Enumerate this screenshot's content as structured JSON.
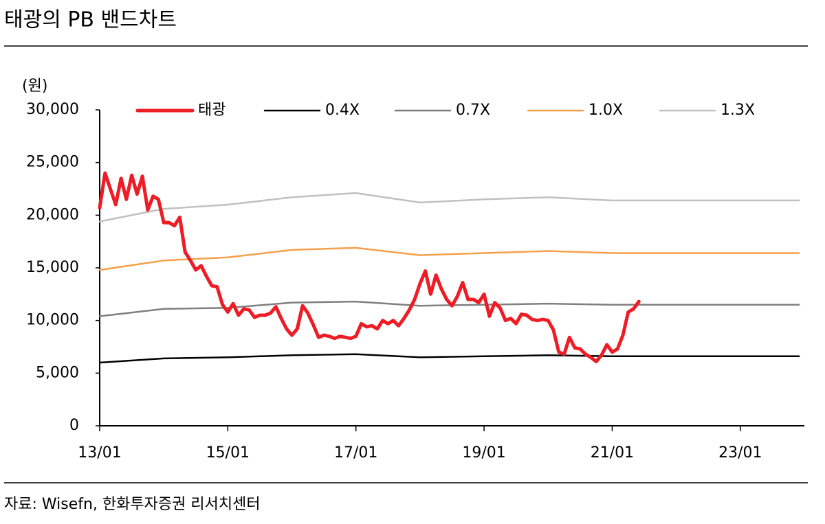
{
  "chart_data": {
    "type": "line",
    "title": "태광의 PB 밴드차트",
    "y_unit": "(원)",
    "source": "자료: Wisefn, 한화투자증권 리서치센터",
    "xlim": [
      "13/01",
      "23/12"
    ],
    "xticks": [
      "13/01",
      "15/01",
      "17/01",
      "19/01",
      "21/01",
      "23/01"
    ],
    "ylim": [
      0,
      30000
    ],
    "yticks": [
      0,
      {
        "value": 5000,
        "label": "5,000"
      },
      {
        "value": 10000,
        "label": "10,000"
      },
      {
        "value": 15000,
        "label": "15,000"
      },
      {
        "value": 20000,
        "label": "20,000"
      },
      {
        "value": 25000,
        "label": "25,000"
      },
      {
        "value": 30000,
        "label": "30,000"
      }
    ],
    "legend": "top",
    "series": [
      {
        "name": "태광",
        "color": "#ee1c25",
        "x": [
          "13/01",
          "13/02",
          "13/03",
          "13/04",
          "13/05",
          "13/06",
          "13/07",
          "13/08",
          "13/09",
          "13/10",
          "13/11",
          "13/12",
          "14/01",
          "14/02",
          "14/03",
          "14/04",
          "14/05",
          "14/06",
          "14/07",
          "14/08",
          "14/09",
          "14/10",
          "14/11",
          "14/12",
          "15/01",
          "15/02",
          "15/03",
          "15/04",
          "15/05",
          "15/06",
          "15/07",
          "15/08",
          "15/09",
          "15/10",
          "15/11",
          "15/12",
          "16/01",
          "16/02",
          "16/03",
          "16/04",
          "16/05",
          "16/06",
          "16/07",
          "16/08",
          "16/09",
          "16/10",
          "16/11",
          "16/12",
          "17/01",
          "17/02",
          "17/03",
          "17/04",
          "17/05",
          "17/06",
          "17/07",
          "17/08",
          "17/09",
          "17/10",
          "17/11",
          "17/12",
          "18/01",
          "18/02",
          "18/03",
          "18/04",
          "18/05",
          "18/06",
          "18/07",
          "18/08",
          "18/09",
          "18/10",
          "18/11",
          "18/12",
          "19/01",
          "19/02",
          "19/03",
          "19/04",
          "19/05",
          "19/06",
          "19/07",
          "19/08",
          "19/09",
          "19/10",
          "19/11",
          "19/12",
          "20/01",
          "20/02",
          "20/03",
          "20/04",
          "20/05",
          "20/06",
          "20/07",
          "20/08",
          "20/09",
          "20/10",
          "20/11",
          "20/12",
          "21/01",
          "21/02",
          "21/03",
          "21/04",
          "21/05",
          "21/06"
        ],
        "values": [
          20700,
          24000,
          22500,
          21000,
          23500,
          21500,
          23800,
          22000,
          23700,
          20500,
          21800,
          21500,
          19300,
          19300,
          19000,
          19800,
          16500,
          15700,
          14800,
          15200,
          14200,
          13300,
          13200,
          11500,
          10800,
          11600,
          10500,
          11100,
          11000,
          10300,
          10500,
          10500,
          10700,
          11300,
          10200,
          9200,
          8600,
          9200,
          11400,
          10700,
          9600,
          8400,
          8600,
          8500,
          8300,
          8500,
          8400,
          8300,
          8500,
          9700,
          9400,
          9500,
          9200,
          10000,
          9700,
          10000,
          9500,
          10200,
          11000,
          12000,
          13500,
          14700,
          12500,
          14300,
          13000,
          12000,
          11400,
          12300,
          13600,
          12000,
          12000,
          11700,
          12500,
          10400,
          11700,
          11200,
          10000,
          10200,
          9700,
          10600,
          10500,
          10100,
          10000,
          10100,
          10000,
          9100,
          7000,
          6800,
          8400,
          7400,
          7300,
          6800,
          6500,
          6100,
          6700,
          7700,
          7000,
          7300,
          8600,
          10800,
          11100,
          11800
        ]
      },
      {
        "name": "0.4X",
        "color": "#000000",
        "x": [
          "13/01",
          "14/01",
          "15/01",
          "16/01",
          "17/01",
          "18/01",
          "19/01",
          "20/01",
          "21/01",
          "23/12"
        ],
        "values": [
          6000,
          6400,
          6500,
          6700,
          6800,
          6500,
          6600,
          6700,
          6600,
          6600
        ]
      },
      {
        "name": "0.7X",
        "color": "#7f7f7f",
        "x": [
          "13/01",
          "14/01",
          "15/01",
          "16/01",
          "17/01",
          "18/01",
          "19/01",
          "20/01",
          "21/01",
          "23/12"
        ],
        "values": [
          10400,
          11100,
          11200,
          11700,
          11800,
          11400,
          11500,
          11600,
          11500,
          11500
        ]
      },
      {
        "name": "1.0X",
        "color": "#f5a04a",
        "x": [
          "13/01",
          "14/01",
          "15/01",
          "16/01",
          "17/01",
          "18/01",
          "19/01",
          "20/01",
          "21/01",
          "23/12"
        ],
        "values": [
          14800,
          15700,
          16000,
          16700,
          16900,
          16200,
          16400,
          16600,
          16400,
          16400
        ]
      },
      {
        "name": "1.3X",
        "color": "#c0c0c0",
        "x": [
          "13/01",
          "14/01",
          "15/01",
          "16/01",
          "17/01",
          "18/01",
          "19/01",
          "20/01",
          "21/01",
          "23/12"
        ],
        "values": [
          19400,
          20600,
          21000,
          21700,
          22100,
          21200,
          21500,
          21700,
          21400,
          21400
        ]
      }
    ]
  }
}
